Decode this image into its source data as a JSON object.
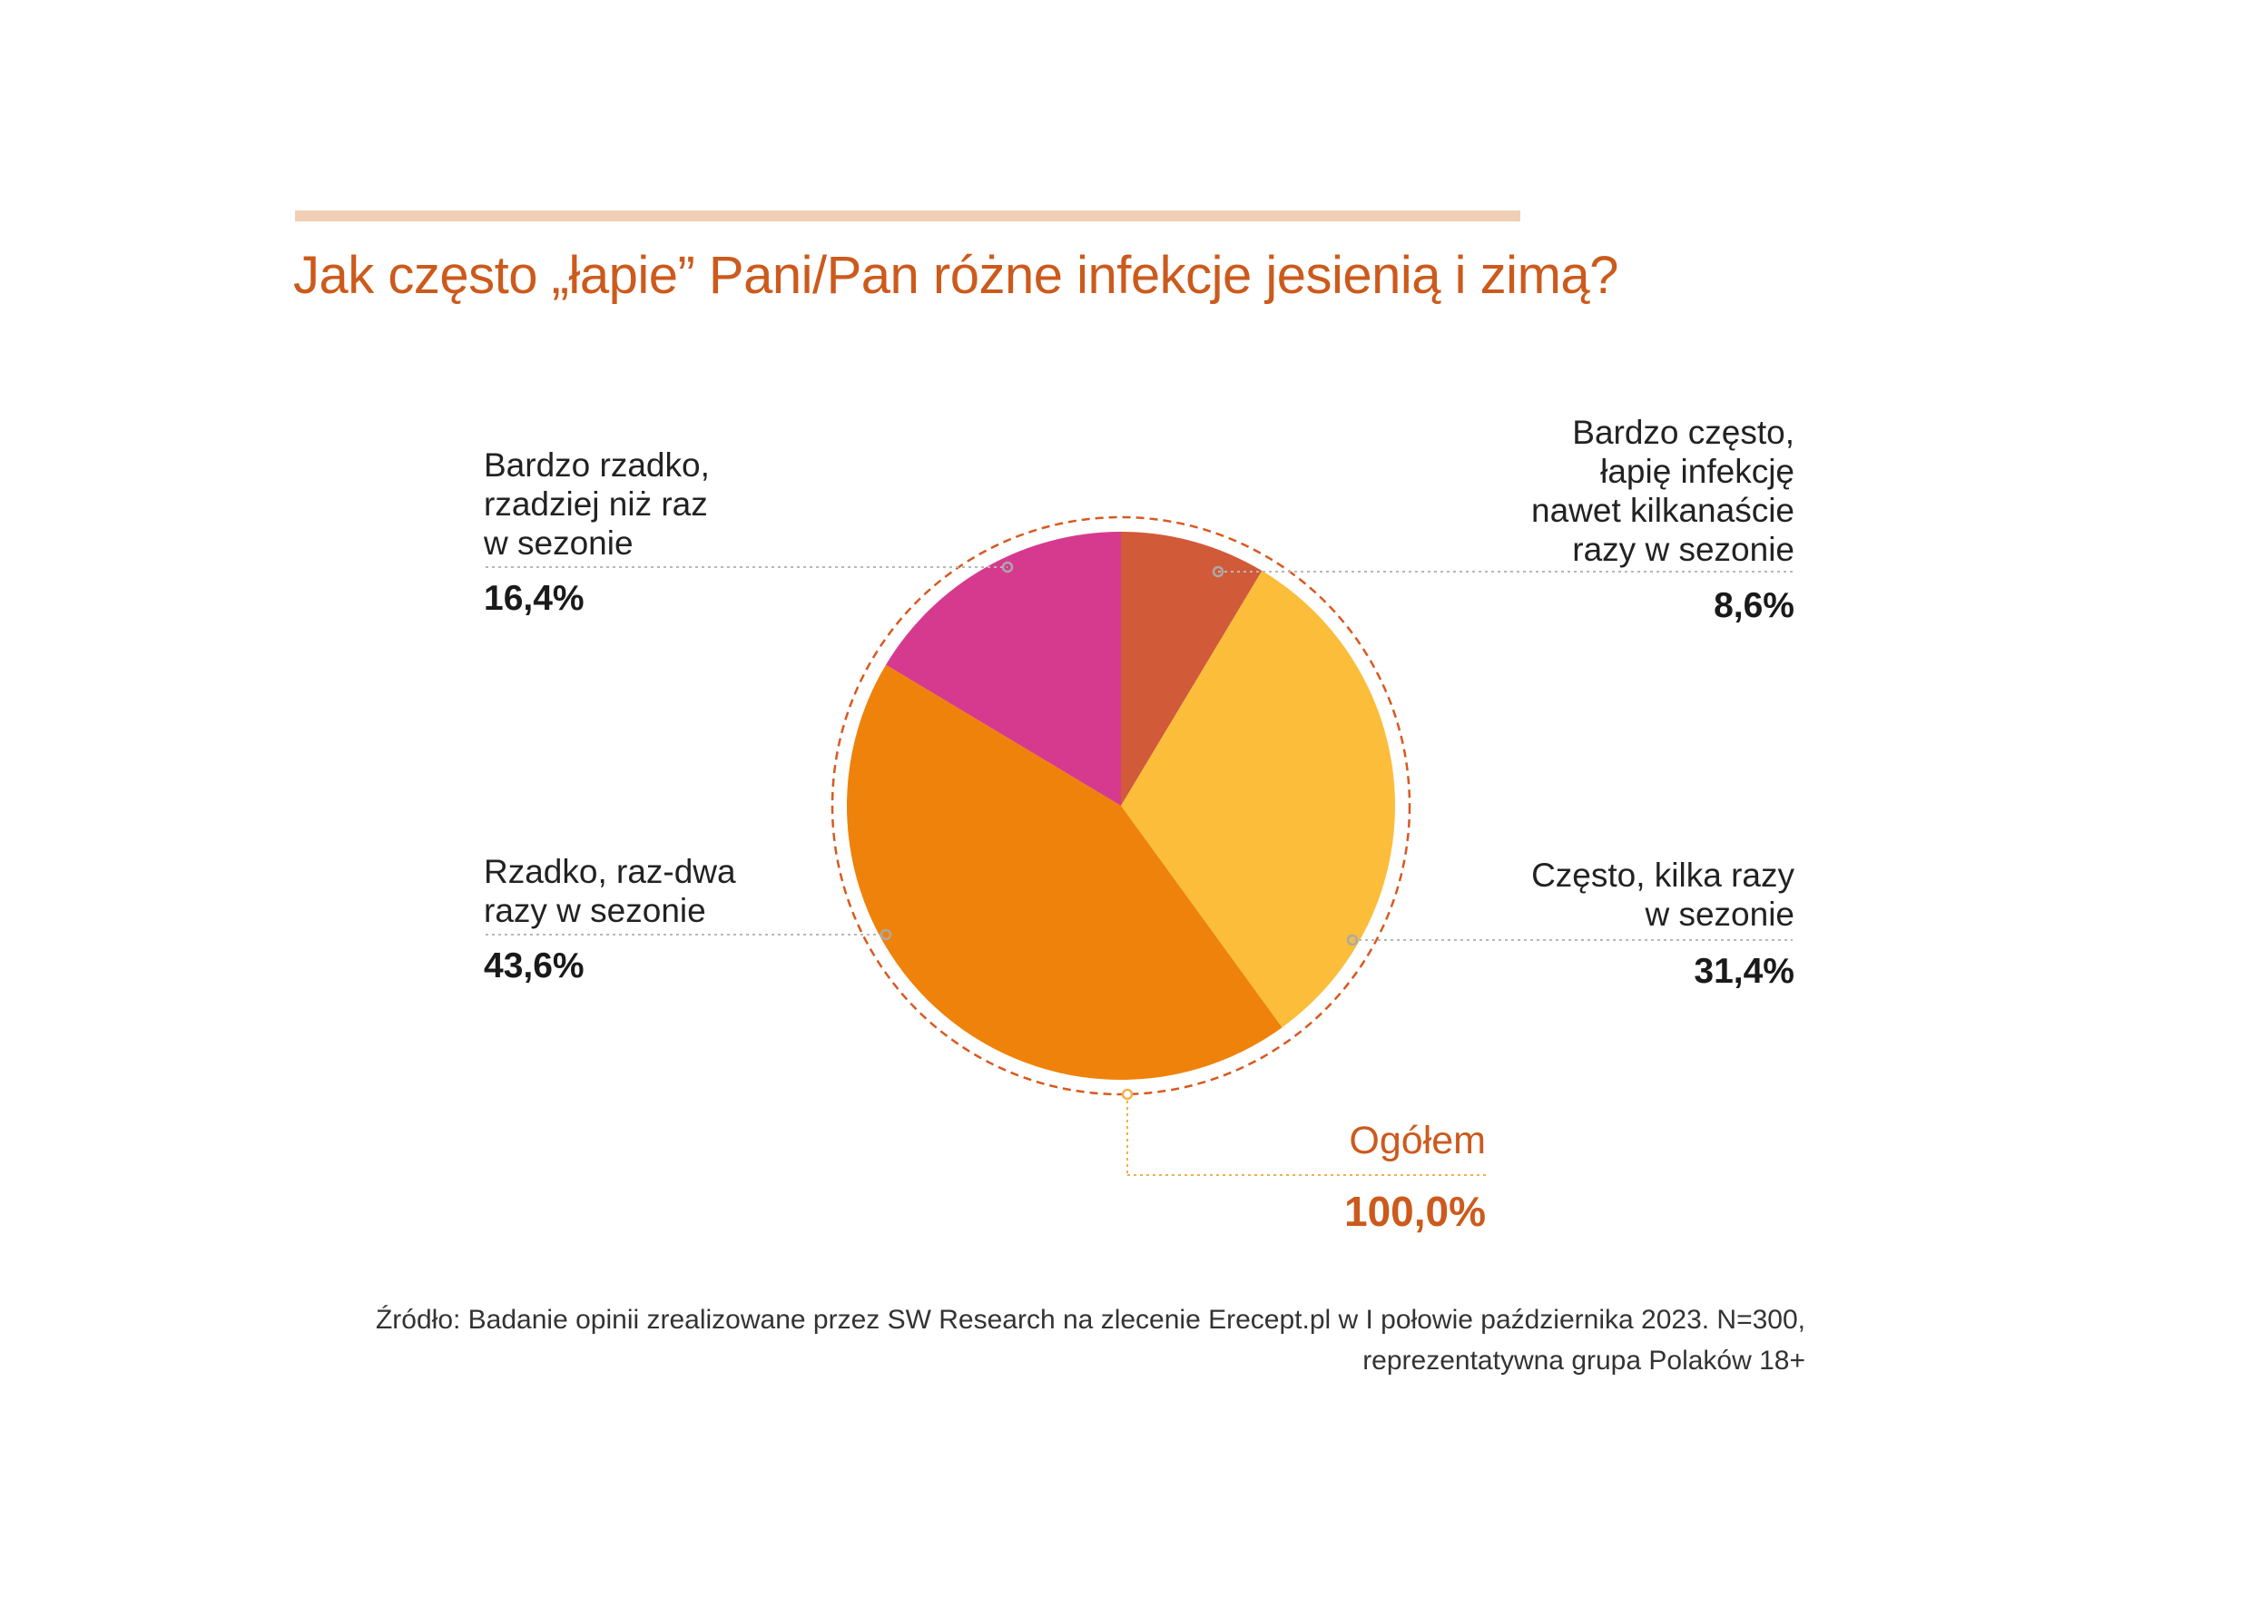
{
  "title": "Jak często „łapie” Pani/Pan różne infekcje jesienią i zimą?",
  "colors": {
    "accent": "#cc5a1c",
    "bar": "#f0cfb5",
    "bardzo_czesto": "#d15a38",
    "czesto": "#fbbd3a",
    "rzadko": "#ef820a",
    "bardzo_rzadko": "#d63a8f"
  },
  "labels": {
    "bardzo_czesto": [
      "Bardzo często,",
      "łapię infekcję",
      "nawet kilkanaście",
      "razy w sezonie"
    ],
    "czesto": [
      "Często, kilka razy",
      "w sezonie"
    ],
    "rzadko": [
      "Rzadko, raz-dwa",
      "razy w sezonie"
    ],
    "bardzo_rzadko": [
      "Bardzo rzadko,",
      "rzadziej niż raz",
      "w sezonie"
    ]
  },
  "values_text": {
    "bardzo_czesto": "8,6%",
    "czesto": "31,4%",
    "rzadko": "43,6%",
    "bardzo_rzadko": "16,4%"
  },
  "total": {
    "label": "Ogółem",
    "value": "100,0%"
  },
  "source": [
    "Źródło: Badanie opinii zrealizowane przez SW Research na zlecenie Erecept.pl w I połowie października 2023. N=300,",
    "reprezentatywna grupa Polaków 18+"
  ],
  "chart_data": {
    "type": "pie",
    "title": "Jak często „łapie” Pani/Pan różne infekcje jesienią i zimą?",
    "categories": [
      "Bardzo często, łapię infekcję nawet kilkanaście razy w sezonie",
      "Często, kilka razy w sezonie",
      "Rzadko, raz-dwa razy w sezonie",
      "Bardzo rzadko, rzadziej niż raz w sezonie"
    ],
    "values": [
      8.6,
      31.4,
      43.6,
      16.4
    ],
    "colors": [
      "#d15a38",
      "#fbbd3a",
      "#ef820a",
      "#d63a8f"
    ],
    "unit": "%",
    "start_angle": "12 o'clock",
    "direction": "clockwise"
  }
}
